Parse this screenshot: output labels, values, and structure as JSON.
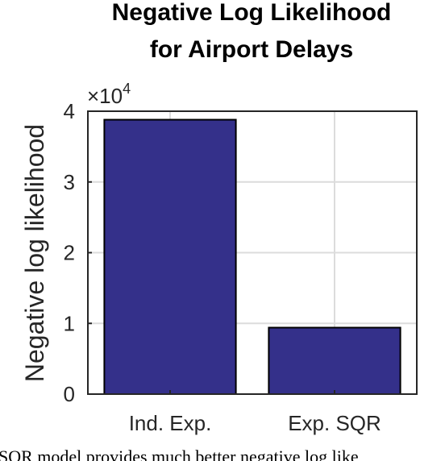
{
  "chart_data": {
    "type": "bar",
    "title_lines": [
      "Negative Log Likelihood",
      "for Airport Delays"
    ],
    "xlabel": "",
    "ylabel": "Negative log likelihood",
    "categories": [
      "Ind. Exp.",
      "Exp. SQR"
    ],
    "values": [
      38800,
      9400
    ],
    "ylim": [
      0,
      40000
    ],
    "y_ticks": [
      0,
      1,
      2,
      3,
      4
    ],
    "y_multiplier": "×10",
    "y_multiplier_exponent": "4",
    "grid": true,
    "bar_color": "#34308a"
  },
  "caption": "SQR model provides much better negative log like"
}
